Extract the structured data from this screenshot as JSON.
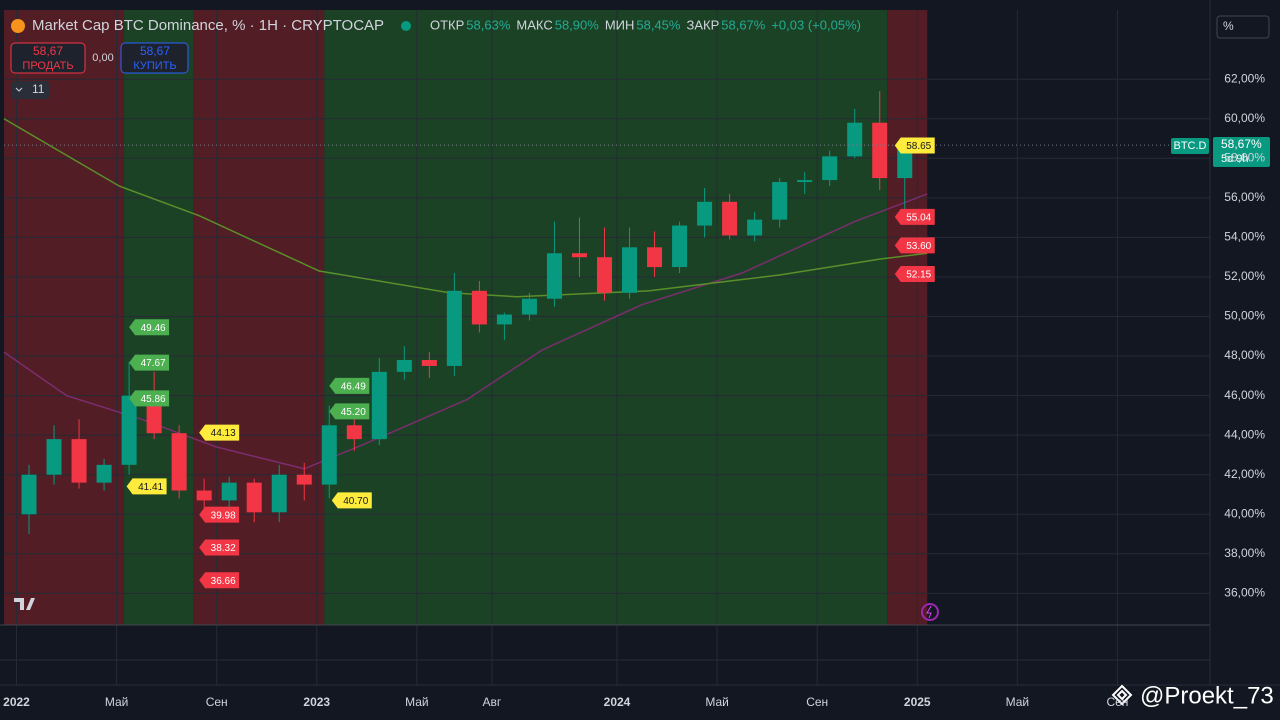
{
  "header": {
    "title": "Market Cap BTC Dominance, % · 1H · CRYPTOCAP",
    "ohlc": [
      {
        "label": "ОТКР",
        "value": "58,63%"
      },
      {
        "label": "МАКС",
        "value": "58,90%"
      },
      {
        "label": "МИН",
        "value": "58,45%"
      },
      {
        "label": "ЗАКР",
        "value": "58,67%"
      }
    ],
    "change": "+0,03 (+0,05%)",
    "sell_price": "58,67",
    "sell_label": "ПРОДАТЬ",
    "spread": "0,00",
    "buy_price": "58,67",
    "buy_label": "КУПИТЬ",
    "indicators": "11",
    "scale_mode": "%",
    "symbol": "BTC.D",
    "last_price": "58,67%",
    "countdown": "5d 9h",
    "watermark": "@Proekt_73"
  },
  "chart_data": {
    "type": "candlestick",
    "up_color": "#089981",
    "down_color": "#f23645",
    "x": [
      0.5,
      1.5,
      2.5,
      3.5,
      4.5,
      5.5,
      6.5,
      7.5,
      8.5,
      9.5,
      10.5,
      11.5,
      12.5,
      13.5,
      14.5,
      15.5,
      16.5,
      17.5,
      18.5,
      19.5,
      20.5,
      21.5,
      22.5,
      23.5,
      24.5,
      25.5,
      26.5,
      27.5,
      28.5,
      29.5,
      30.5,
      31.5,
      32.5,
      33.5,
      34.5,
      35.5
    ],
    "open": [
      40.0,
      42.0,
      43.8,
      41.6,
      42.5,
      46.0,
      44.1,
      41.2,
      40.7,
      41.6,
      40.1,
      42.0,
      41.5,
      44.5,
      43.8,
      47.2,
      47.8,
      47.5,
      51.3,
      49.6,
      50.1,
      50.9,
      53.2,
      53.0,
      51.2,
      53.5,
      52.5,
      54.6,
      55.8,
      54.1,
      54.9,
      56.8,
      56.9,
      58.1,
      59.8,
      57.0
    ],
    "high": [
      42.5,
      44.5,
      44.8,
      42.8,
      47.7,
      47.2,
      44.5,
      41.8,
      41.9,
      41.8,
      42.5,
      42.6,
      45.5,
      45.2,
      47.9,
      48.5,
      48.2,
      52.2,
      51.8,
      50.2,
      51.2,
      54.8,
      55.0,
      54.5,
      54.5,
      54.3,
      54.8,
      56.5,
      56.2,
      55.3,
      57.0,
      57.3,
      58.4,
      60.5,
      61.4,
      59.0
    ],
    "low": [
      39.0,
      41.5,
      41.3,
      41.2,
      42.0,
      43.8,
      40.8,
      39.8,
      39.9,
      39.6,
      39.6,
      40.7,
      40.8,
      43.2,
      43.5,
      46.8,
      46.9,
      47.0,
      49.2,
      48.8,
      49.8,
      50.5,
      52.0,
      50.8,
      50.9,
      52.0,
      52.2,
      54.0,
      53.9,
      53.8,
      54.5,
      56.2,
      56.6,
      58.0,
      56.4,
      55.0
    ],
    "close": [
      42.0,
      43.8,
      41.6,
      42.5,
      46.0,
      44.1,
      41.2,
      40.7,
      41.6,
      40.1,
      42.0,
      41.5,
      44.5,
      43.8,
      47.2,
      47.8,
      47.5,
      51.3,
      49.6,
      50.1,
      50.9,
      53.2,
      53.0,
      51.2,
      53.5,
      52.5,
      54.6,
      55.8,
      54.1,
      54.9,
      56.8,
      56.9,
      58.1,
      59.8,
      57.0,
      58.67
    ],
    "last": 58.67,
    "averages": [
      {
        "color": "#7b2d6e",
        "x": [
          -0.5,
          2,
          5,
          8,
          11.5,
          14,
          18,
          21,
          25,
          29,
          33.5,
          36.4
        ],
        "values": [
          48.2,
          46.0,
          44.8,
          43.4,
          42.3,
          43.6,
          45.8,
          48.3,
          50.6,
          52.2,
          54.8,
          56.2
        ]
      },
      {
        "color": "#5a8f2a",
        "x": [
          -0.5,
          4.1,
          7.3,
          12.1,
          17.3,
          20,
          25.3,
          30.5,
          34.5,
          36.4
        ],
        "values": [
          60.0,
          56.6,
          55.1,
          52.3,
          51.2,
          51.0,
          51.3,
          52.1,
          52.9,
          53.2
        ]
      }
    ],
    "zones": [
      {
        "start": -0.5,
        "end": 4.3,
        "color": "#5e1f24"
      },
      {
        "start": 4.3,
        "end": 7.07,
        "color": "#1e4a27"
      },
      {
        "start": 7.07,
        "end": 12.3,
        "color": "#5e1f24"
      },
      {
        "start": 12.3,
        "end": 34.8,
        "color": "#1e4a27"
      },
      {
        "start": 34.8,
        "end": 36.4,
        "color": "#5e1f24"
      }
    ],
    "tags": {
      "x": [
        4.5,
        4.5,
        4.5,
        7.3,
        4.4,
        7.3,
        7.3,
        7.3,
        12.5,
        12.5,
        12.6,
        35.1,
        35.1,
        35.1,
        35.1
      ],
      "values": [
        49.46,
        47.67,
        45.86,
        44.13,
        41.41,
        39.98,
        38.32,
        36.66,
        46.49,
        45.2,
        40.7,
        58.65,
        55.04,
        53.6,
        52.15
      ],
      "value_labels": [
        "49.46",
        "47.67",
        "45.86",
        "44.13",
        "41.41",
        "39.98",
        "38.32",
        "36.66",
        "46.49",
        "45.20",
        "40.70",
        "58.65",
        "55.04",
        "53.60",
        "52.15"
      ],
      "colors": [
        "#4caf50",
        "#4caf50",
        "#4caf50",
        "#ffeb3b",
        "#ffeb3b",
        "#f23645",
        "#f23645",
        "#f23645",
        "#4caf50",
        "#4caf50",
        "#ffeb3b",
        "#ffeb3b",
        "#f23645",
        "#f23645",
        "#f23645"
      ]
    },
    "xlim": [
      -0.5,
      47.7
    ],
    "xticks": [
      {
        "value": 0,
        "label": "2022"
      },
      {
        "value": 4,
        "label": "Май"
      },
      {
        "value": 8,
        "label": "Сен"
      },
      {
        "value": 12,
        "label": "2023"
      },
      {
        "value": 16,
        "label": "Май"
      },
      {
        "value": 19,
        "label": "Авг"
      },
      {
        "value": 24,
        "label": "2024"
      },
      {
        "value": 28,
        "label": "Май"
      },
      {
        "value": 32,
        "label": "Сен"
      },
      {
        "value": 36,
        "label": "2025"
      },
      {
        "value": 40,
        "label": "Май"
      },
      {
        "value": 44,
        "label": "Сен"
      }
    ],
    "ylim": [
      34.4,
      65.5
    ],
    "yticks": [
      {
        "value": 36,
        "label": "36,00%"
      },
      {
        "value": 38,
        "label": "38,00%"
      },
      {
        "value": 40,
        "label": "40,00%"
      },
      {
        "value": 42,
        "label": "42,00%"
      },
      {
        "value": 44,
        "label": "44,00%"
      },
      {
        "value": 46,
        "label": "46,00%"
      },
      {
        "value": 48,
        "label": "48,00%"
      },
      {
        "value": 50,
        "label": "50,00%"
      },
      {
        "value": 52,
        "label": "52,00%"
      },
      {
        "value": 54,
        "label": "54,00%"
      },
      {
        "value": 56,
        "label": "56,00%"
      },
      {
        "value": 58,
        "label": "58,00%"
      },
      {
        "value": 60,
        "label": "60,00%"
      },
      {
        "value": 62,
        "label": "62,00%"
      }
    ],
    "grid": true
  }
}
